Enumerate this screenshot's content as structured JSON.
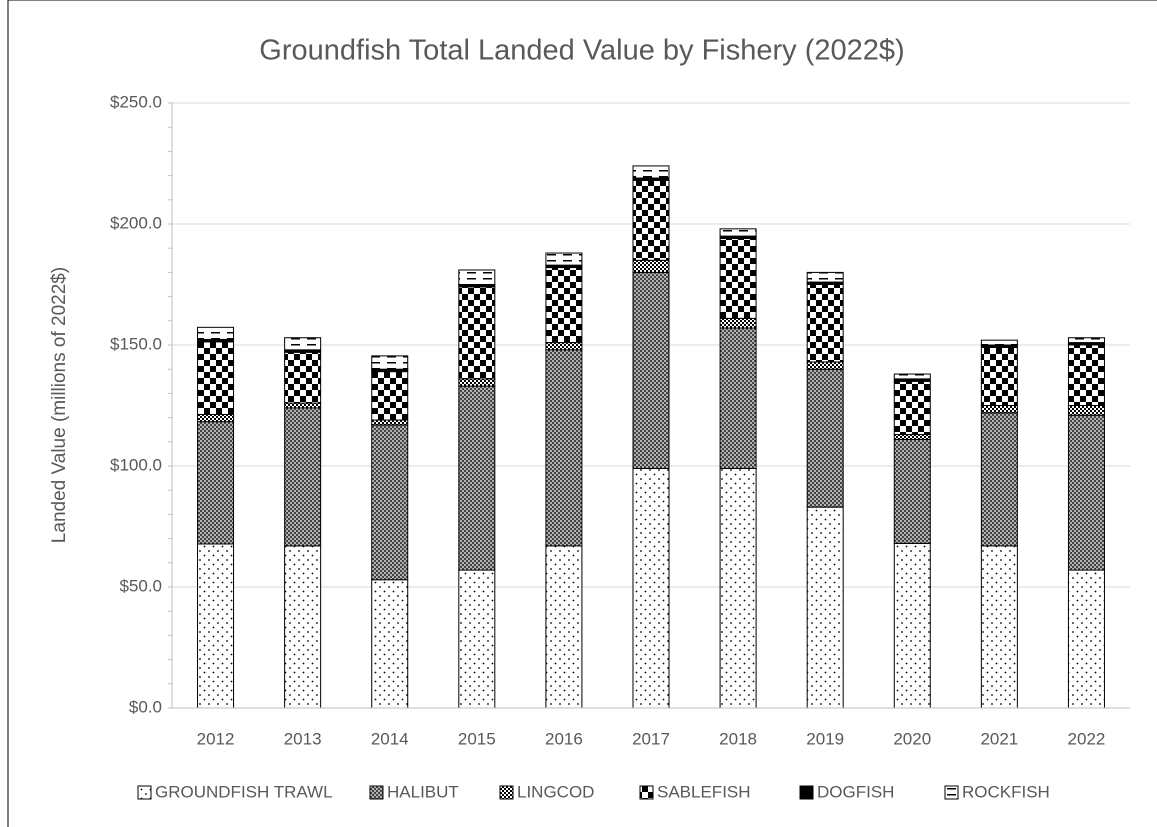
{
  "chart_data": {
    "type": "stacked_bar",
    "title": "Groundfish Total Landed Value by Fishery (2022$)",
    "y_label": "Landed Value (millions of 2022$)",
    "categories": [
      "2012",
      "2013",
      "2014",
      "2015",
      "2016",
      "2017",
      "2018",
      "2019",
      "2020",
      "2021",
      "2022"
    ],
    "series": [
      {
        "name": "GROUNDFISH TRAWL",
        "color": "#000000",
        "pattern": "dots",
        "values": [
          67.8,
          67,
          53,
          57,
          67,
          99,
          99,
          83,
          68,
          67,
          57
        ]
      },
      {
        "name": "HALIBUT",
        "color": "#000000",
        "pattern": "crosshatch",
        "values": [
          50.5,
          57,
          64,
          76,
          81,
          81,
          58,
          57,
          43,
          55,
          64
        ]
      },
      {
        "name": "LINGCOD",
        "color": "#000000",
        "pattern": "small-checker",
        "values": [
          3,
          2,
          2,
          3,
          3,
          5,
          4,
          3,
          2,
          3,
          4
        ]
      },
      {
        "name": "SABLEFISH",
        "color": "#000000",
        "pattern": "large-checker",
        "values": [
          30,
          21,
          20,
          38,
          31,
          33,
          33,
          32,
          22,
          24,
          25
        ]
      },
      {
        "name": "DOGFISH",
        "color": "#000000",
        "pattern": "solid",
        "values": [
          1,
          1,
          1,
          1,
          1,
          1,
          1,
          1,
          1,
          1,
          1
        ]
      },
      {
        "name": "ROCKFISH",
        "color": "#000000",
        "pattern": "dash",
        "values": [
          5,
          5,
          5.5,
          6,
          5,
          5,
          3,
          4,
          2,
          2,
          2
        ]
      }
    ],
    "ylim": [
      0,
      250
    ],
    "yticks": [
      {
        "value": 0,
        "label": "$0.0"
      },
      {
        "value": 50,
        "label": "$50.0"
      },
      {
        "value": 100,
        "label": "$100.0"
      },
      {
        "value": 150,
        "label": "$150.0"
      },
      {
        "value": 200,
        "label": "$200.0"
      },
      {
        "value": 250,
        "label": "$250.0"
      }
    ],
    "grid": true
  }
}
